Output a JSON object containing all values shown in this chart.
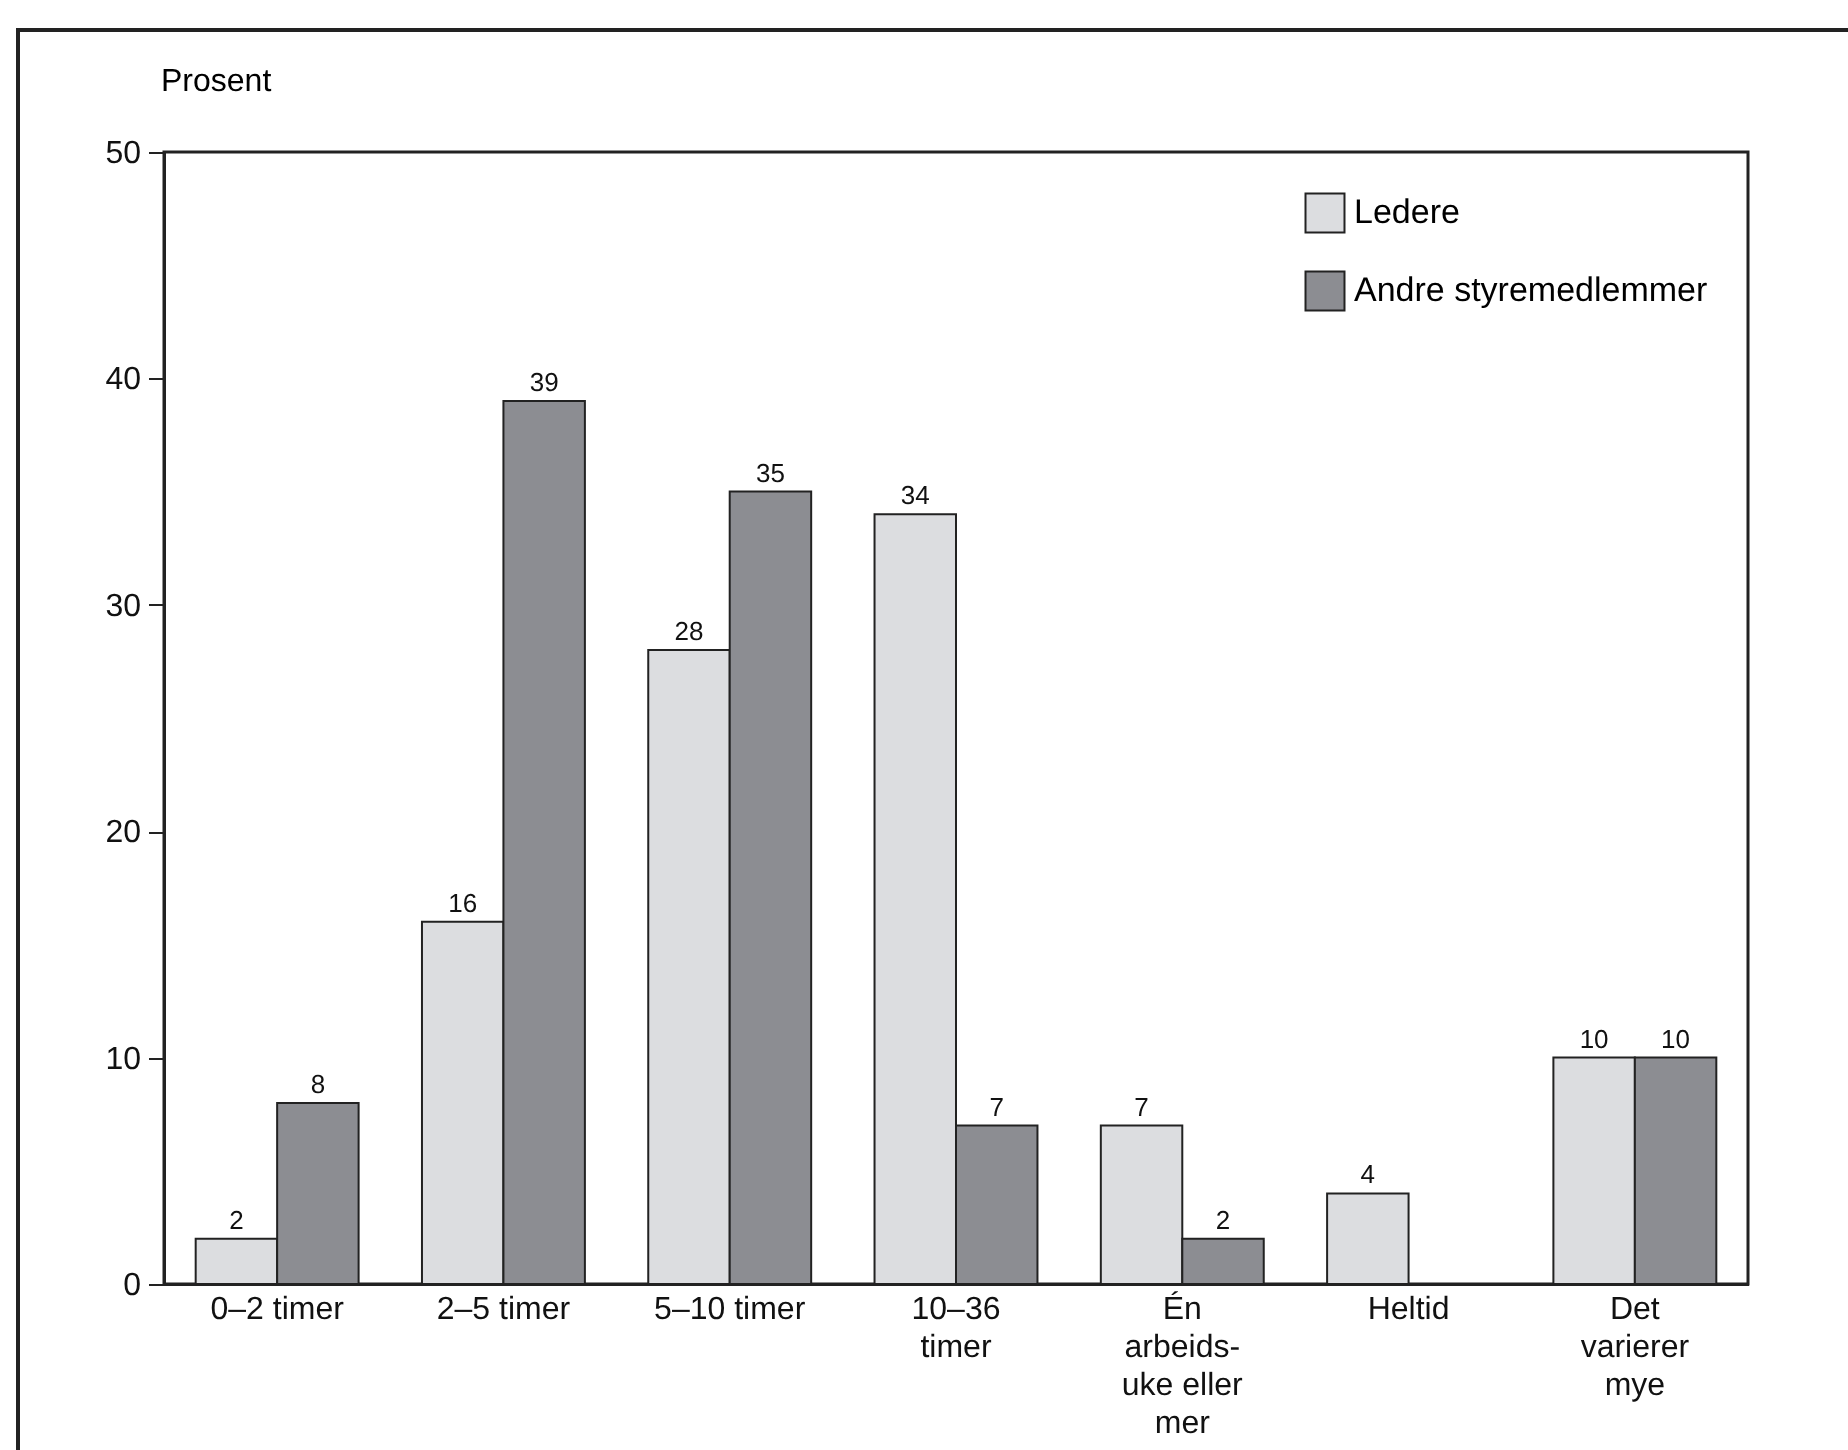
{
  "chart_data": {
    "type": "bar",
    "ylabel": "Prosent",
    "categories": [
      "0–2 timer",
      "2–5 timer",
      "5–10 timer",
      "10–36 timer",
      "Én arbeids- uke eller mer",
      "Heltid",
      "Det varierer mye"
    ],
    "series": [
      {
        "name": "Ledere",
        "color": "#dcdde0",
        "values": [
          2,
          16,
          28,
          34,
          7,
          4,
          10
        ]
      },
      {
        "name": "Andre styremedlemmer",
        "color": "#8c8d92",
        "values": [
          8,
          39,
          35,
          7,
          2,
          null,
          10
        ]
      }
    ],
    "ylim": [
      0,
      50
    ],
    "yticks": [
      0,
      10,
      20,
      30,
      40,
      50
    ],
    "grid": false,
    "legend": "top right",
    "data_labels": true
  }
}
